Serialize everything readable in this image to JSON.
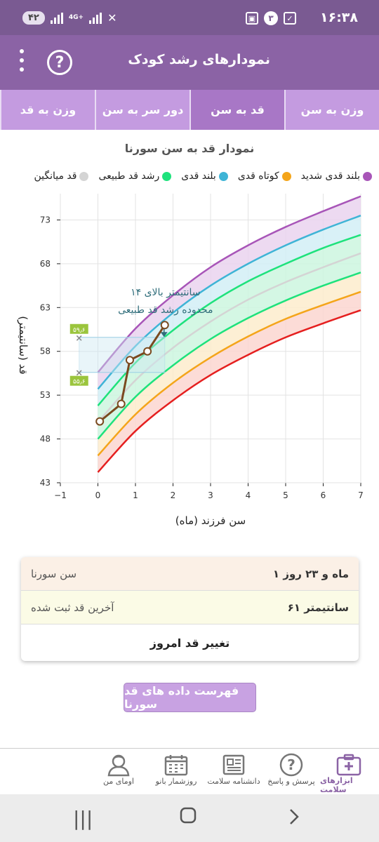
{
  "status": {
    "time": "۱۶:۳۸",
    "notif_count": "۳",
    "battery": "۴۲",
    "network": "4G+"
  },
  "appbar": {
    "title": "نمودارهای رشد کودک",
    "help_glyph": "?"
  },
  "tabs": [
    {
      "label": "وزن به سن",
      "active": false
    },
    {
      "label": "قد به سن",
      "active": true
    },
    {
      "label": "دور سر به سن",
      "active": false
    },
    {
      "label": "وزن به قد",
      "active": false
    }
  ],
  "chart_title": "نمودار قد به سن سورنا",
  "legend": [
    {
      "label": "بلند قدی شدید",
      "color": "#a855b8"
    },
    {
      "label": "کوتاه قدی",
      "color": "#f4a51a"
    },
    {
      "label": "بلند قدی",
      "color": "#3eb4d6"
    },
    {
      "label": "رشد قد طبیعی",
      "color": "#1ee27c"
    },
    {
      "label": "قد میانگین",
      "color": "#d4d4d4"
    }
  ],
  "chart_data": {
    "type": "line",
    "xlabel": "سن فرزند (ماه)",
    "ylabel": "قد (سانتیمتر)",
    "xlim": [
      -1,
      7
    ],
    "ylim": [
      43,
      76
    ],
    "xticks": [
      -1,
      0,
      1,
      2,
      3,
      4,
      5,
      6,
      7
    ],
    "yticks": [
      43,
      48,
      53,
      58,
      63,
      68,
      73
    ],
    "x": [
      0,
      1,
      2,
      3,
      4,
      5,
      6,
      7
    ],
    "series": [
      {
        "name": "red",
        "color": "#e51f1f",
        "values": [
          44.2,
          48.9,
          52.4,
          55.3,
          57.6,
          59.6,
          61.2,
          62.7
        ]
      },
      {
        "name": "orange",
        "color": "#f4a51a",
        "values": [
          46.1,
          50.8,
          54.4,
          57.3,
          59.7,
          61.7,
          63.3,
          64.8
        ]
      },
      {
        "name": "green-low",
        "color": "#1ee27c",
        "values": [
          48.0,
          52.8,
          56.4,
          59.4,
          61.8,
          63.8,
          65.5,
          67.0
        ]
      },
      {
        "name": "median",
        "color": "#d4d4d4",
        "values": [
          49.9,
          54.7,
          58.4,
          61.4,
          63.9,
          65.9,
          67.6,
          69.2
        ]
      },
      {
        "name": "green-high",
        "color": "#1ee27c",
        "values": [
          51.8,
          56.7,
          60.4,
          63.5,
          66.0,
          68.0,
          69.8,
          71.3
        ]
      },
      {
        "name": "blue",
        "color": "#3eb4d6",
        "values": [
          53.7,
          58.6,
          62.4,
          65.5,
          68.0,
          70.1,
          71.9,
          73.5
        ]
      },
      {
        "name": "purple",
        "color": "#a855b8",
        "values": [
          55.6,
          60.6,
          64.4,
          67.6,
          70.1,
          72.2,
          74.0,
          75.7
        ]
      }
    ],
    "child": {
      "color": "#7a4a1f",
      "points": [
        [
          0.05,
          50.0
        ],
        [
          0.62,
          52.0
        ],
        [
          0.85,
          57.0
        ],
        [
          1.32,
          58.0
        ],
        [
          1.78,
          61.0
        ]
      ]
    },
    "range_low": {
      "value": 55.6,
      "label": "۵۵٫۶"
    },
    "range_high": {
      "value": 59.6,
      "label": "۵۹٫۶"
    },
    "annotation": [
      "۱۴ سانتیمتر بالای",
      "محدوده رشد قد طبیعی"
    ]
  },
  "card": {
    "age_label": "سن سورنا",
    "age_value": "۱ ماه و ۲۳ روز",
    "height_label": "آخرین قد ثبت شده",
    "height_value": "۶۱ سانتیمتر",
    "action": "تغییر قد امروز"
  },
  "list_button": "فهرست داده های قد سورنا",
  "bottom_nav": [
    {
      "label": "ابزارهای سلامت",
      "icon": "medical-kit-icon",
      "active": true
    },
    {
      "label": "پرسش و پاسخ",
      "icon": "question-icon",
      "active": false
    },
    {
      "label": "دانشنامه سلامت",
      "icon": "newspaper-icon",
      "active": false
    },
    {
      "label": "روزشمار بانو",
      "icon": "calendar-icon",
      "active": false
    },
    {
      "label": "اومای من",
      "icon": "profile-icon",
      "active": false
    }
  ]
}
